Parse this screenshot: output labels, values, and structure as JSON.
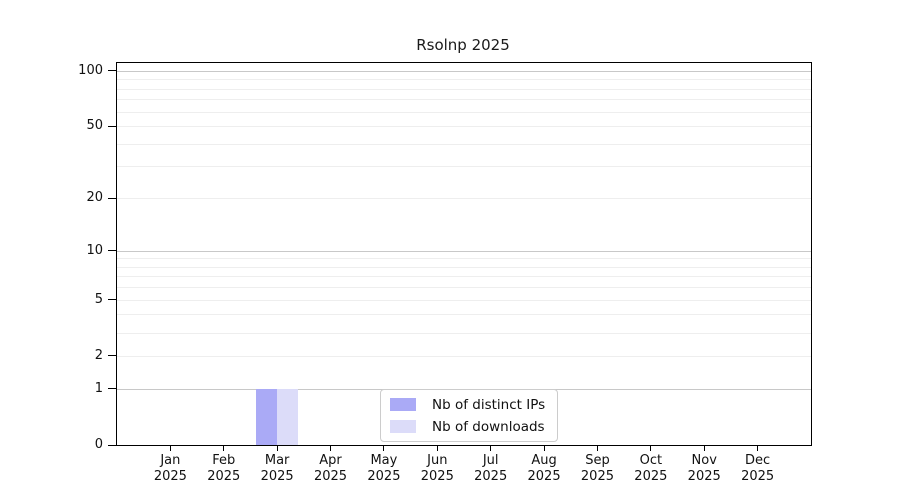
{
  "chart_data": {
    "type": "bar",
    "title": "Rsolnp 2025",
    "categories": [
      "Jan 2025",
      "Feb 2025",
      "Mar 2025",
      "Apr 2025",
      "May 2025",
      "Jun 2025",
      "Jul 2025",
      "Aug 2025",
      "Sep 2025",
      "Oct 2025",
      "Nov 2025",
      "Dec 2025"
    ],
    "series": [
      {
        "name": "Nb of distinct IPs",
        "color": "#aaaaf6",
        "values": [
          0,
          0,
          1,
          0,
          0,
          0,
          0,
          0,
          0,
          0,
          0,
          0
        ]
      },
      {
        "name": "Nb of downloads",
        "color": "#dcdcf9",
        "values": [
          0,
          0,
          1,
          0,
          0,
          0,
          0,
          0,
          0,
          0,
          0,
          0
        ]
      }
    ],
    "yscale": "log1p",
    "ylim": [
      0,
      110
    ],
    "yticks": [
      0,
      1,
      2,
      5,
      10,
      20,
      50,
      100
    ],
    "grid_major_values": [
      1,
      10,
      100
    ],
    "grid_minor_values": [
      2,
      3,
      4,
      5,
      6,
      7,
      8,
      9,
      20,
      30,
      40,
      50,
      60,
      70,
      80,
      90
    ],
    "grid_major_color": "#c8c8c8",
    "grid_minor_color": "#eeeeee",
    "axis_color": "#000000",
    "bar_group_fraction": 0.8,
    "legend_position": "inside-bottom-center"
  }
}
